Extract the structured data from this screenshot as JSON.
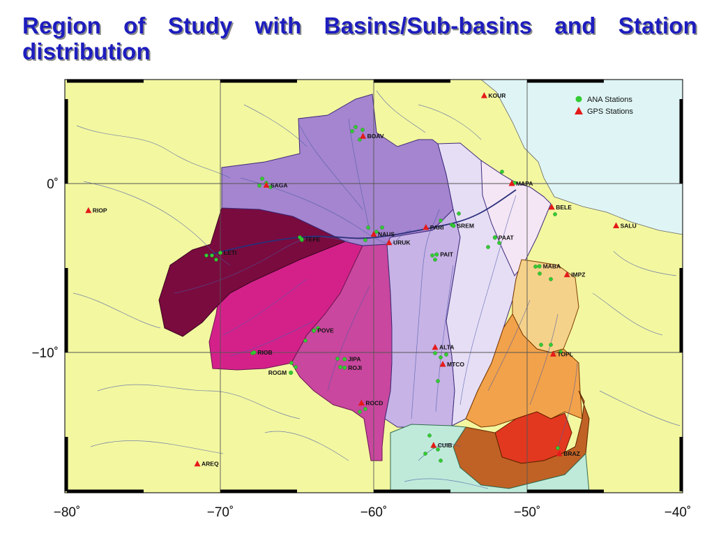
{
  "title": "Region of Study with Basins/Sub-basins and Station distribution",
  "map": {
    "x_axis_ticks": [
      "−80˚",
      "−70˚",
      "−60˚",
      "−50˚",
      "−40˚"
    ],
    "y_axis_ticks": [
      "0˚",
      "−10˚"
    ],
    "legend": {
      "ana_label": "ANA Stations",
      "gps_label": "GPS Stations",
      "ana_color": "#33cc33",
      "gps_color": "#e41a1a"
    },
    "gps_stations": [
      {
        "name": "KOUR",
        "lon": -52.8,
        "lat": 5.2
      },
      {
        "name": "BOAV",
        "lon": -60.7,
        "lat": 2.8
      },
      {
        "name": "SAGA",
        "lon": -67.0,
        "lat": -0.1
      },
      {
        "name": "MAPA",
        "lon": -51.0,
        "lat": 0.0
      },
      {
        "name": "RIOP",
        "lon": -78.6,
        "lat": -1.6
      },
      {
        "name": "BELE",
        "lon": -48.4,
        "lat": -1.4
      },
      {
        "name": "SALU",
        "lon": -44.2,
        "lat": -2.5
      },
      {
        "name": "PARI",
        "lon": -56.6,
        "lat": -2.6
      },
      {
        "name": "NAUS",
        "lon": -60.0,
        "lat": -3.0
      },
      {
        "name": "URUK",
        "lon": -59.0,
        "lat": -3.5
      },
      {
        "name": "IMPZ",
        "lon": -47.4,
        "lat": -5.4
      },
      {
        "name": "ALTA",
        "lon": -56.0,
        "lat": -9.7
      },
      {
        "name": "MTCO",
        "lon": -55.5,
        "lat": -10.7
      },
      {
        "name": "TOPL",
        "lon": -48.3,
        "lat": -10.1
      },
      {
        "name": "ROCD",
        "lon": -60.8,
        "lat": -13.0
      },
      {
        "name": "CUIB",
        "lon": -56.1,
        "lat": -15.5
      },
      {
        "name": "BRAZ",
        "lon": -47.9,
        "lat": -16.0
      },
      {
        "name": "AREQ",
        "lon": -71.5,
        "lat": -16.6
      }
    ],
    "ana_only_labels": [
      {
        "name": "TEFE",
        "lon": -64.7,
        "lat": -3.3
      },
      {
        "name": "LETI",
        "lon": -70.0,
        "lat": -4.1
      },
      {
        "name": "PAIT",
        "lon": -55.9,
        "lat": -4.2
      },
      {
        "name": "SREM",
        "lon": -54.8,
        "lat": -2.5
      },
      {
        "name": "PAAT",
        "lon": -52.1,
        "lat": -3.2
      },
      {
        "name": "MABA",
        "lon": -49.2,
        "lat": -4.9
      },
      {
        "name": "POVE",
        "lon": -63.9,
        "lat": -8.7
      },
      {
        "name": "RIOB",
        "lon": -67.8,
        "lat": -10.0
      },
      {
        "name": "JIPA",
        "lon": -61.9,
        "lat": -10.4
      },
      {
        "name": "ROJI",
        "lon": -61.9,
        "lat": -10.9
      },
      {
        "name": "ROGM",
        "lon": -65.4,
        "lat": -11.2
      }
    ]
  }
}
